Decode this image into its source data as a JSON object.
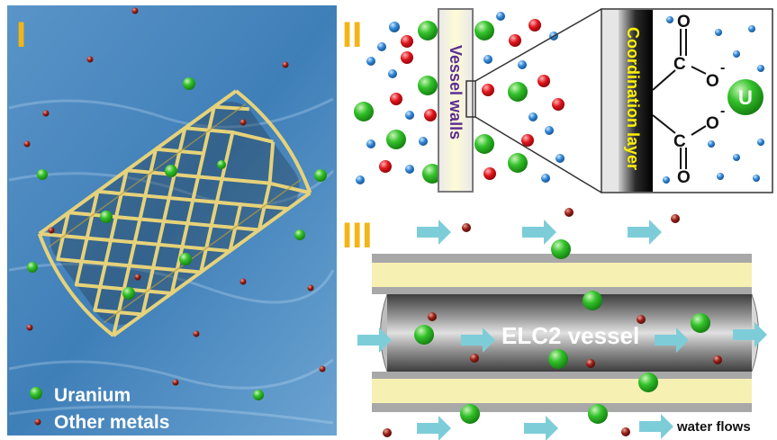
{
  "panels": {
    "p1": {
      "roman": "I"
    },
    "p2": {
      "roman": "II"
    },
    "p3": {
      "roman": "III"
    }
  },
  "legend": {
    "uranium": "Uranium",
    "other_metals": "Other metals"
  },
  "panel2": {
    "vessel_walls": "Vessel walls",
    "coordination_layer": "Coordination layer",
    "atom_c": "C",
    "atom_o": "O",
    "charge": "-",
    "uranium_symbol": "U"
  },
  "panel3": {
    "vessel_label": "ELC2 vessel",
    "water_flows": "water flows"
  },
  "colors": {
    "roman_numeral": "#f3b516",
    "uranium": "#22b51f",
    "other_metal": "#8c1a12",
    "red_ion": "#e0141c",
    "blue_ion": "#2f86d6",
    "wall_yellow": "#f7f0b3",
    "vessel_text_purple": "#5b2d91",
    "coord_text_yellow": "#fff200",
    "arrow": "#7dcdd9",
    "water": "#3f7fb8"
  }
}
